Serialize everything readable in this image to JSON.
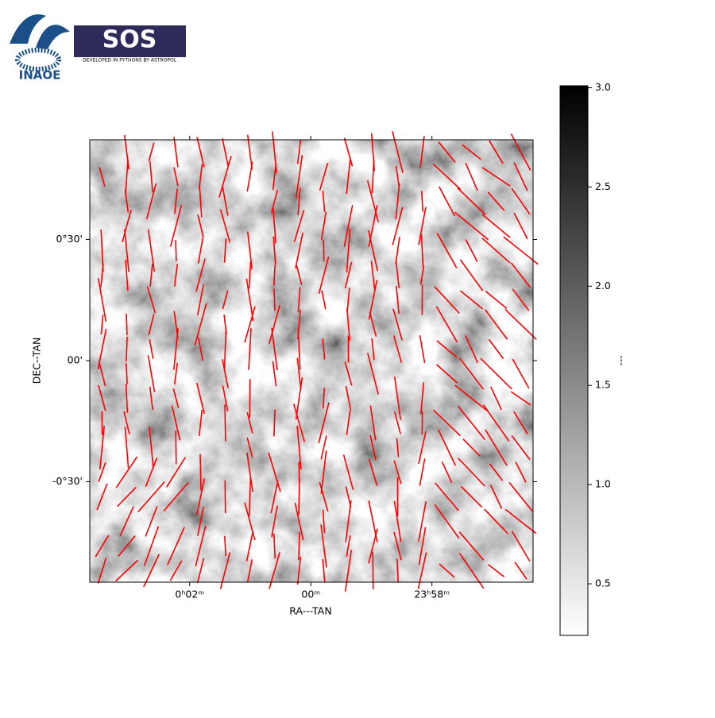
{
  "brand": {
    "institute": "INAOE",
    "product": "SOS",
    "tagline": "DEVELOPED IN PYTHONS BY ASTROPOL"
  },
  "chart_data": {
    "type": "image",
    "xlabel": "RA---TAN",
    "ylabel": "DEC--TAN",
    "xlim": [
      3.65,
      -3.67
    ],
    "xticks": [
      {
        "value": 2,
        "label": "0ʰ02ᵐ"
      },
      {
        "value": 0,
        "label": "00ᵐ"
      },
      {
        "value": -2,
        "label": "23ʰ58ᵐ"
      }
    ],
    "ylim": [
      -54.9,
      54.7
    ],
    "yticks": [
      {
        "value": 30,
        "label": "0°30'"
      },
      {
        "value": 0,
        "label": "00'"
      },
      {
        "value": -30,
        "label": "-0°30'"
      }
    ],
    "colorbar": {
      "label": "---",
      "lim": [
        0.24,
        3.01
      ],
      "ticks": [
        0.5,
        {
          "value": 1,
          "label": "1.0"
        },
        1.5,
        {
          "value": 2,
          "label": "2.0"
        },
        2.5,
        {
          "value": 3,
          "label": "3.0"
        }
      ]
    }
  }
}
